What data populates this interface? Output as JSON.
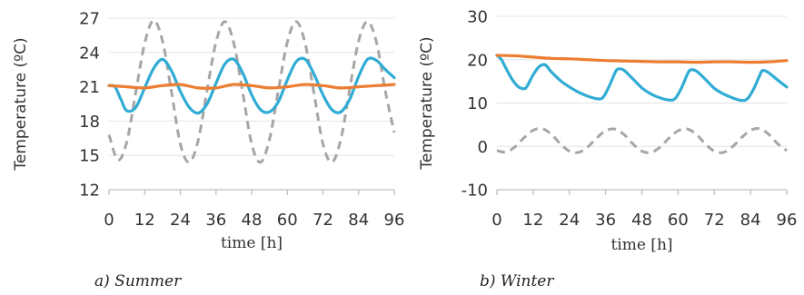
{
  "colors": {
    "indoor": "#ed7d31",
    "wall": "#31acd4",
    "outdoor": "#a6a6a6",
    "grid": "#e4e4e4",
    "axis": "#bfbfbf",
    "text": "#333333"
  },
  "captions": {
    "summer": "a) Summer",
    "winter": "b) Winter"
  },
  "chart_data": [
    {
      "type": "line",
      "title": "",
      "xlabel": "time [h]",
      "ylabel": "Temperature  (ºC)",
      "xlim": [
        0,
        96
      ],
      "ylim": [
        12,
        27
      ],
      "xticks": [
        "0",
        "12",
        "24",
        "36",
        "48",
        "60",
        "72",
        "84",
        "96"
      ],
      "yticks": [
        "12",
        "15",
        "18",
        "21",
        "24",
        "27"
      ],
      "grid": true,
      "series": [
        {
          "color": "#a6a6a6",
          "dash": true,
          "x": [
            0,
            3,
            6,
            9,
            12,
            15,
            18,
            21,
            24,
            27,
            30,
            33,
            36,
            39,
            42,
            45,
            48,
            51,
            54,
            57,
            60,
            63,
            66,
            69,
            72,
            75,
            78,
            81,
            84,
            87,
            90,
            93,
            96
          ],
          "y": [
            16.8,
            14.6,
            16.2,
            20.5,
            24.8,
            26.8,
            25.0,
            20.6,
            16.0,
            14.4,
            16.3,
            20.7,
            24.9,
            26.7,
            24.8,
            20.5,
            16.0,
            14.4,
            16.4,
            20.7,
            24.9,
            26.7,
            24.8,
            20.4,
            16.0,
            14.4,
            16.4,
            20.8,
            25.0,
            26.7,
            24.9,
            20.6,
            17.0
          ]
        },
        {
          "color": "#31acd4",
          "dash": false,
          "x": [
            0,
            2,
            4,
            6,
            9,
            12,
            15,
            18,
            21,
            24,
            27,
            30,
            33,
            36,
            39,
            42,
            45,
            48,
            51,
            54,
            57,
            60,
            63,
            66,
            69,
            72,
            75,
            78,
            81,
            84,
            87,
            90,
            93,
            96
          ],
          "y": [
            21.1,
            21.0,
            19.9,
            18.9,
            19.2,
            20.9,
            22.6,
            23.4,
            22.4,
            20.6,
            19.2,
            18.7,
            19.5,
            21.3,
            23.0,
            23.4,
            22.2,
            20.3,
            19.0,
            18.8,
            19.7,
            21.6,
            23.2,
            23.4,
            22.1,
            20.3,
            19.0,
            18.8,
            19.9,
            21.9,
            23.4,
            23.3,
            22.5,
            21.8
          ]
        },
        {
          "color": "#ed7d31",
          "dash": false,
          "x": [
            0,
            6,
            12,
            18,
            24,
            30,
            36,
            42,
            48,
            54,
            60,
            66,
            72,
            78,
            84,
            90,
            96
          ],
          "y": [
            21.1,
            21.0,
            20.9,
            21.1,
            21.2,
            20.9,
            20.9,
            21.2,
            21.1,
            20.9,
            21.0,
            21.2,
            21.1,
            20.9,
            21.0,
            21.1,
            21.2
          ]
        }
      ]
    },
    {
      "type": "line",
      "title": "",
      "xlabel": "time [h]",
      "ylabel": "Temperature  (ºC)",
      "xlim": [
        0,
        96
      ],
      "ylim": [
        -10,
        30
      ],
      "xticks": [
        "0",
        "12",
        "24",
        "36",
        "48",
        "60",
        "72",
        "84",
        "96"
      ],
      "yticks": [
        "-10",
        "0",
        "10",
        "20",
        "30"
      ],
      "grid": true,
      "series": [
        {
          "color": "#a6a6a6",
          "dash": true,
          "x": [
            0,
            3,
            6,
            9,
            12,
            15,
            18,
            21,
            24,
            27,
            30,
            33,
            36,
            39,
            42,
            45,
            48,
            51,
            54,
            57,
            60,
            63,
            66,
            69,
            72,
            75,
            78,
            81,
            84,
            87,
            90,
            93,
            96
          ],
          "y": [
            -1.0,
            -1.3,
            -0.1,
            2.0,
            3.7,
            4.1,
            2.8,
            0.6,
            -1.1,
            -1.4,
            -0.2,
            1.9,
            3.6,
            4.0,
            2.8,
            0.6,
            -1.1,
            -1.4,
            -0.2,
            1.9,
            3.6,
            4.0,
            2.8,
            0.6,
            -1.1,
            -1.4,
            -0.1,
            2.0,
            3.7,
            4.1,
            2.8,
            0.6,
            -1.0
          ]
        },
        {
          "color": "#31acd4",
          "dash": false,
          "x": [
            0,
            1.5,
            3,
            5,
            7,
            9,
            10,
            12,
            14,
            16,
            18,
            21,
            24,
            27,
            30,
            33,
            35,
            37,
            39,
            40,
            42,
            45,
            48,
            51,
            54,
            57,
            59,
            61,
            63,
            64,
            66,
            69,
            72,
            75,
            78,
            81,
            83,
            85,
            87,
            88,
            90,
            93,
            96
          ],
          "y": [
            21.0,
            20.0,
            18.0,
            15.5,
            13.8,
            13.3,
            13.9,
            16.5,
            18.4,
            18.8,
            17.2,
            15.2,
            13.7,
            12.5,
            11.6,
            11.0,
            11.2,
            13.6,
            16.8,
            17.8,
            17.6,
            15.6,
            13.5,
            12.1,
            11.2,
            10.7,
            11.0,
            13.3,
            16.5,
            17.6,
            17.4,
            15.5,
            13.4,
            12.1,
            11.2,
            10.6,
            11.0,
            13.2,
            16.3,
            17.5,
            17.0,
            15.3,
            13.7
          ]
        },
        {
          "color": "#ed7d31",
          "dash": false,
          "x": [
            0,
            6,
            12,
            18,
            24,
            30,
            36,
            42,
            48,
            54,
            60,
            66,
            72,
            78,
            84,
            90,
            96
          ],
          "y": [
            21.0,
            20.9,
            20.6,
            20.3,
            20.2,
            20.0,
            19.8,
            19.7,
            19.6,
            19.5,
            19.5,
            19.4,
            19.5,
            19.5,
            19.4,
            19.5,
            19.8
          ]
        }
      ]
    }
  ]
}
